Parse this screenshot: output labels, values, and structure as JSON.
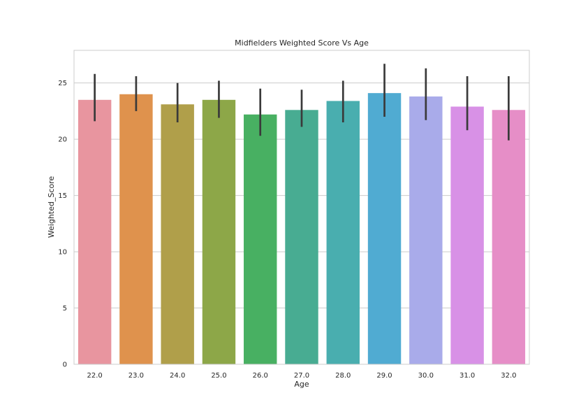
{
  "chart_data": {
    "type": "bar",
    "title": "Midfielders Weighted Score Vs Age",
    "xlabel": "Age",
    "ylabel": "Weighted_Score",
    "categories": [
      "22.0",
      "23.0",
      "24.0",
      "25.0",
      "26.0",
      "27.0",
      "28.0",
      "29.0",
      "30.0",
      "31.0",
      "32.0"
    ],
    "values": [
      23.5,
      24.0,
      23.1,
      23.5,
      22.2,
      22.6,
      23.4,
      24.1,
      23.8,
      22.9,
      22.6
    ],
    "error_low": [
      21.6,
      22.5,
      21.5,
      21.9,
      20.3,
      21.1,
      21.5,
      22.0,
      21.7,
      20.8,
      19.9
    ],
    "error_high": [
      25.8,
      25.6,
      25.0,
      25.2,
      24.5,
      24.4,
      25.2,
      26.7,
      26.3,
      25.6,
      25.6
    ],
    "yticks": [
      0,
      5,
      10,
      15,
      20,
      25
    ],
    "ylim": [
      0,
      27.9
    ],
    "grid": "horizontal",
    "colors": [
      "#e8959f",
      "#df924d",
      "#b09f4a",
      "#8da748",
      "#48b062",
      "#48ac92",
      "#49aeaf",
      "#50abd2",
      "#a9abea",
      "#d891e6",
      "#e68ec7"
    ],
    "error_color": "#3a3a3a"
  }
}
